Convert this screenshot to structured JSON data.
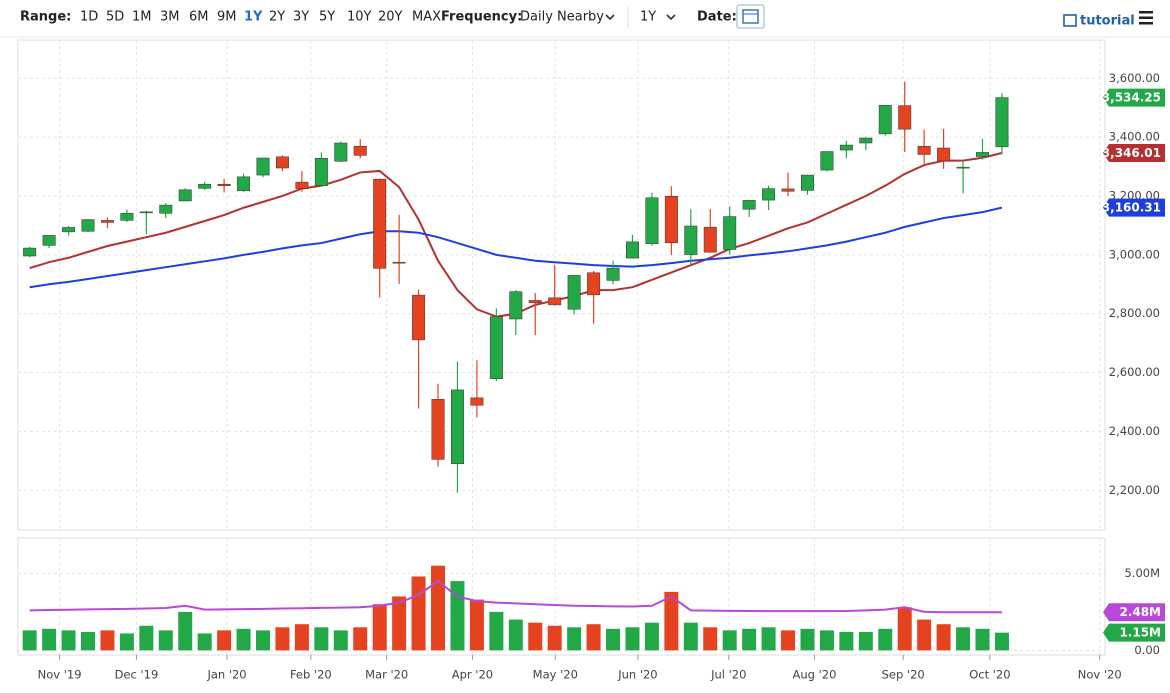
{
  "toolbar": {
    "range_label": "Range:",
    "ranges": [
      "1D",
      "5D",
      "1M",
      "3M",
      "6M",
      "9M",
      "1Y",
      "2Y",
      "3Y",
      "5Y",
      "10Y",
      "20Y",
      "MAX"
    ],
    "active_range": 6,
    "frequency_label": "Frequency:",
    "frequency": "Daily Nearby",
    "period": "1Y",
    "date_label": "Date:",
    "tutorial": "tutorial"
  },
  "chart_data": [
    {
      "type": "candlestick",
      "x": [
        0,
        1,
        2,
        3,
        4,
        5,
        6,
        7,
        8,
        9,
        10,
        11,
        12,
        13,
        14,
        15,
        16,
        17,
        18,
        19,
        20,
        21,
        22,
        23,
        24,
        25,
        26,
        27,
        28,
        29,
        30,
        31,
        32,
        33,
        34,
        35,
        36,
        37,
        38,
        39,
        40,
        41,
        42,
        43,
        44,
        45,
        46,
        47,
        48,
        49,
        50
      ],
      "open": [
        2996,
        3032,
        3078,
        3080,
        3117,
        3117,
        3143,
        3141,
        3183,
        3226,
        3240,
        3218,
        3271,
        3333,
        3247,
        3235,
        3318,
        3369,
        3257,
        2975,
        2863,
        2509,
        2290,
        2514,
        2579,
        2782,
        2845,
        2854,
        2815,
        2939,
        2913,
        2989,
        3038,
        3199,
        3001,
        3094,
        3018,
        3155,
        3186,
        3224,
        3219,
        3288,
        3356,
        3380,
        3411,
        3507,
        3369,
        3363,
        3295,
        3334,
        3367
      ],
      "high": [
        3027,
        3066,
        3098,
        3121,
        3127,
        3154,
        3150,
        3176,
        3226,
        3248,
        3258,
        3276,
        3329,
        3338,
        3285,
        3348,
        3385,
        3393,
        3260,
        3136,
        2882,
        2562,
        2637,
        2642,
        2818,
        2880,
        2870,
        2965,
        2932,
        2945,
        2980,
        3068,
        3211,
        3233,
        3155,
        3155,
        3165,
        3186,
        3235,
        3280,
        3272,
        3352,
        3387,
        3399,
        3509,
        3588,
        3425,
        3428,
        3320,
        3394,
        3549
      ],
      "low": [
        2992,
        3023,
        3066,
        3077,
        3091,
        3112,
        3070,
        3125,
        3183,
        3220,
        3212,
        3214,
        3264,
        3284,
        3214,
        3235,
        3315,
        3328,
        2855,
        2901,
        2478,
        2280,
        2192,
        2448,
        2571,
        2728,
        2727,
        2828,
        2797,
        2766,
        2900,
        2988,
        3031,
        2999,
        2965,
        3007,
        3000,
        3128,
        3152,
        3200,
        3204,
        3284,
        3328,
        3355,
        3405,
        3349,
        3310,
        3292,
        3209,
        3324,
        3342
      ],
      "close": [
        3023,
        3066,
        3093,
        3120,
        3110,
        3141,
        3146,
        3169,
        3221,
        3240,
        3235,
        3265,
        3329,
        3295,
        3225,
        3328,
        3380,
        3338,
        2954,
        2972,
        2711,
        2305,
        2541,
        2489,
        2790,
        2875,
        2837,
        2830,
        2930,
        2864,
        2955,
        3044,
        3194,
        3041,
        3098,
        3009,
        3130,
        3185,
        3225,
        3216,
        3271,
        3351,
        3373,
        3397,
        3508,
        3427,
        3341,
        3319,
        3298,
        3348,
        3534.25
      ],
      "last_label": "3,534.25",
      "up_color": "#22a846",
      "down_color": "#e5431f",
      "series": [
        {
          "name": "50-day",
          "color": "#b53030",
          "last_label": "3,346.01",
          "values": [
            2955,
            2975,
            2990,
            3010,
            3030,
            3045,
            3060,
            3075,
            3095,
            3115,
            3135,
            3160,
            3180,
            3200,
            3225,
            3235,
            3255,
            3280,
            3285,
            3230,
            3120,
            2980,
            2880,
            2815,
            2790,
            2800,
            2830,
            2845,
            2860,
            2880,
            2880,
            2890,
            2915,
            2940,
            2965,
            2990,
            3020,
            3040,
            3065,
            3090,
            3110,
            3140,
            3170,
            3200,
            3235,
            3275,
            3305,
            3320,
            3320,
            3330,
            3346.01
          ]
        },
        {
          "name": "200-day",
          "color": "#1e3fdc",
          "last_label": "3,160.31",
          "values": [
            2890,
            2900,
            2908,
            2918,
            2928,
            2938,
            2948,
            2958,
            2968,
            2978,
            2988,
            3000,
            3010,
            3022,
            3032,
            3040,
            3055,
            3070,
            3080,
            3080,
            3075,
            3060,
            3040,
            3020,
            3000,
            2990,
            2980,
            2975,
            2970,
            2965,
            2962,
            2960,
            2965,
            2972,
            2980,
            2985,
            2990,
            2998,
            3005,
            3012,
            3022,
            3032,
            3045,
            3060,
            3075,
            3095,
            3110,
            3125,
            3135,
            3145,
            3160.31
          ]
        }
      ],
      "xlim": [
        -0.6,
        55.3
      ],
      "ylim": [
        2065,
        3730
      ],
      "yticks": [
        {
          "value": 2200,
          "label": "2,200.00"
        },
        {
          "value": 2400,
          "label": "2,400.00"
        },
        {
          "value": 2600,
          "label": "2,600.00"
        },
        {
          "value": 2800,
          "label": "2,800.00"
        },
        {
          "value": 3000,
          "label": "3,000.00"
        },
        {
          "value": 3200,
          "label": "3,200.00"
        },
        {
          "value": 3400,
          "label": "3,400.00"
        },
        {
          "value": 3600,
          "label": "3,600.00"
        }
      ],
      "grid": true
    },
    {
      "type": "bar",
      "x": [
        0,
        1,
        2,
        3,
        4,
        5,
        6,
        7,
        8,
        9,
        10,
        11,
        12,
        13,
        14,
        15,
        16,
        17,
        18,
        19,
        20,
        21,
        22,
        23,
        24,
        25,
        26,
        27,
        28,
        29,
        30,
        31,
        32,
        33,
        34,
        35,
        36,
        37,
        38,
        39,
        40,
        41,
        42,
        43,
        44,
        45,
        46,
        47,
        48,
        49,
        50
      ],
      "values": [
        1.3,
        1.4,
        1.3,
        1.2,
        1.3,
        1.1,
        1.6,
        1.3,
        2.5,
        1.1,
        1.3,
        1.4,
        1.3,
        1.5,
        1.7,
        1.5,
        1.3,
        1.5,
        3.0,
        3.5,
        4.8,
        5.5,
        4.5,
        3.3,
        2.5,
        2.0,
        1.8,
        1.6,
        1.5,
        1.7,
        1.4,
        1.5,
        1.8,
        3.8,
        1.8,
        1.5,
        1.3,
        1.4,
        1.5,
        1.3,
        1.4,
        1.3,
        1.2,
        1.2,
        1.4,
        2.8,
        2.0,
        1.7,
        1.5,
        1.4,
        1.15
      ],
      "last_label": "1.15M",
      "series": [
        {
          "name": "volume-average",
          "color": "#b848d8",
          "last_label": "2.48M",
          "values": [
            2.6,
            2.62,
            2.64,
            2.66,
            2.68,
            2.7,
            2.72,
            2.75,
            2.9,
            2.65,
            2.66,
            2.68,
            2.7,
            2.72,
            2.74,
            2.76,
            2.78,
            2.8,
            2.9,
            3.1,
            3.6,
            4.5,
            3.5,
            3.2,
            3.1,
            3.05,
            3.0,
            2.95,
            2.9,
            2.88,
            2.86,
            2.85,
            2.9,
            3.5,
            2.6,
            2.58,
            2.57,
            2.56,
            2.55,
            2.55,
            2.55,
            2.55,
            2.56,
            2.6,
            2.65,
            2.8,
            2.5,
            2.48,
            2.48,
            2.48,
            2.48
          ]
        }
      ],
      "xlim": [
        -0.6,
        55.3
      ],
      "ylim": [
        -0.3,
        7.3
      ],
      "yticks": [
        {
          "value": 0,
          "label": "0.00"
        },
        {
          "value": 5,
          "label": "5.00M"
        }
      ],
      "xticks": [
        {
          "value": 1.54,
          "label": "Nov '19"
        },
        {
          "value": 5.49,
          "label": "Dec '19"
        },
        {
          "value": 10.15,
          "label": "Jan '20"
        },
        {
          "value": 14.46,
          "label": "Feb '20"
        },
        {
          "value": 18.36,
          "label": "Mar '20"
        },
        {
          "value": 22.77,
          "label": "Apr '20"
        },
        {
          "value": 27.03,
          "label": "May '20"
        },
        {
          "value": 31.28,
          "label": "Jun '20"
        },
        {
          "value": 35.95,
          "label": "Jul '20"
        },
        {
          "value": 40.36,
          "label": "Aug '20"
        },
        {
          "value": 44.92,
          "label": "Sep '20"
        },
        {
          "value": 49.38,
          "label": "Oct '20"
        },
        {
          "value": 55.03,
          "label": "Nov '20"
        }
      ],
      "grid": true
    }
  ]
}
